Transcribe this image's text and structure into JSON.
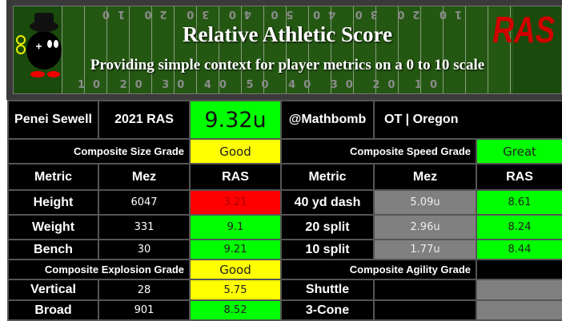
{
  "banner": {
    "title": "Relative Athletic Score",
    "subtitle": "Providing simple context for player metrics on a 0 to 10 scale",
    "logo": "RAS",
    "yard_top": "10 20 30 40 50 40 30 20 10",
    "yard_bottom": "10 20 30 40 50 40 30 20 10"
  },
  "player": {
    "name": "Penei Sewell",
    "year_label": "2021 RAS",
    "score": "9.32u",
    "handle": "@Mathbomb",
    "position_school": "OT | Oregon"
  },
  "grades": {
    "size_label": "Composite Size Grade",
    "size": "Good",
    "speed_label": "Composite Speed Grade",
    "speed": "Great",
    "explosion_label": "Composite Explosion Grade",
    "explosion": "Good",
    "agility_label": "Composite Agility Grade",
    "agility": ""
  },
  "headers": {
    "metric": "Metric",
    "mez": "Mez",
    "ras": "RAS"
  },
  "left_rows": [
    {
      "metric": "Height",
      "mez": "6047",
      "ras": "3.21"
    },
    {
      "metric": "Weight",
      "mez": "331",
      "ras": "9.1"
    },
    {
      "metric": "Bench",
      "mez": "30",
      "ras": "9.21"
    }
  ],
  "right_rows": [
    {
      "metric": "40 yd dash",
      "mez": "5.09u",
      "ras": "8.61"
    },
    {
      "metric": "20 split",
      "mez": "2.96u",
      "ras": "8.24"
    },
    {
      "metric": "10 split",
      "mez": "1.77u",
      "ras": "8.44"
    }
  ],
  "explosion_rows": [
    {
      "metric": "Vertical",
      "mez": "28",
      "ras": "5.75"
    },
    {
      "metric": "Broad",
      "mez": "901",
      "ras": "8.52"
    }
  ],
  "agility_rows": [
    {
      "metric": "Shuttle",
      "mez": "",
      "ras": ""
    },
    {
      "metric": "3-Cone",
      "mez": "",
      "ras": ""
    }
  ],
  "colors": {
    "good": "#ffff00",
    "great": "#00ff00",
    "poor": "#ff0000",
    "unofficial": "#808080"
  }
}
